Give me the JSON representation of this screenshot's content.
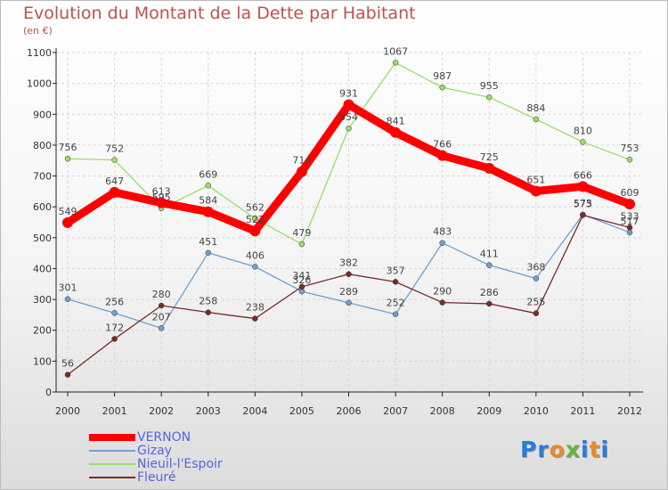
{
  "page": {
    "title": "Evolution du Montant de la Dette par Habitant",
    "unit": "(en €)"
  },
  "logo": {
    "text": "Proxiti",
    "letter_colors": [
      "#2b7bd8",
      "#2b7bd8",
      "#e98a2b",
      "#6ab23b",
      "#2b7bd8",
      "#e98a2b",
      "#2b7bd8"
    ]
  },
  "chart_data": {
    "type": "line",
    "title": "Evolution du Montant de la Dette par Habitant",
    "subtitle": "(en €)",
    "x": [
      "2000",
      "2001",
      "2002",
      "2003",
      "2004",
      "2005",
      "2006",
      "2007",
      "2008",
      "2009",
      "2010",
      "2011",
      "2012"
    ],
    "yticks": [
      0,
      100,
      200,
      300,
      400,
      500,
      600,
      700,
      800,
      900,
      1000,
      1100
    ],
    "ylim": [
      0,
      1100
    ],
    "grid": true,
    "legend_position": "bottom-left",
    "series": [
      {
        "name": "VERNON",
        "color": "#ff0000",
        "values": [
          549,
          647,
          613,
          584,
          522,
          714,
          931,
          841,
          766,
          725,
          651,
          666,
          609
        ]
      },
      {
        "name": "Gizay",
        "color": "#6f9fd0",
        "values": [
          301,
          256,
          207,
          451,
          406,
          326,
          289,
          252,
          483,
          411,
          368,
          575,
          517
        ]
      },
      {
        "name": "Nieuil-l'Espoir",
        "color": "#99dd66",
        "values": [
          756,
          752,
          595,
          669,
          562,
          479,
          854,
          1067,
          987,
          955,
          884,
          810,
          753
        ]
      },
      {
        "name": "Fleuré",
        "color": "#7a2a2a",
        "values": [
          56,
          172,
          280,
          258,
          238,
          341,
          382,
          357,
          290,
          286,
          255,
          573,
          533
        ]
      }
    ]
  }
}
